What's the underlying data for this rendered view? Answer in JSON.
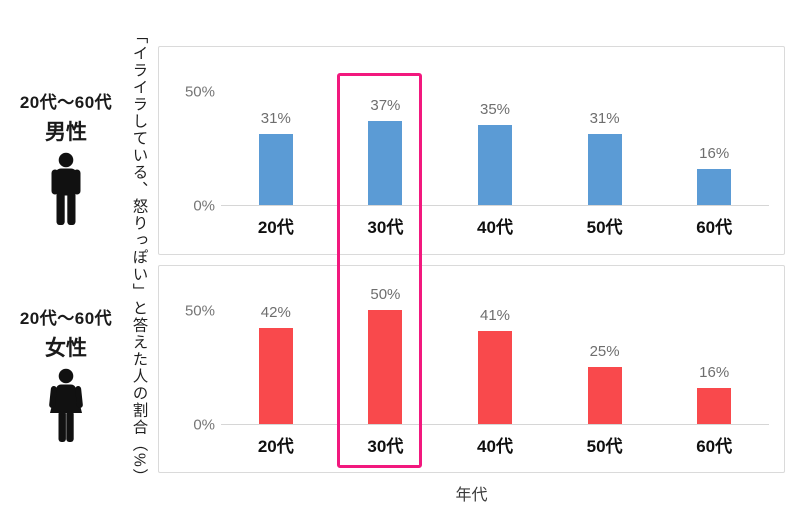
{
  "y_axis_title": "「イライラしている、怒りっぽい」と答えた人の割合（%）",
  "x_axis_title": "年代",
  "side_labels": {
    "male": {
      "age_range": "20代〜60代",
      "gender": "男性"
    },
    "female": {
      "age_range": "20代〜60代",
      "gender": "女性"
    }
  },
  "highlight": {
    "category": "30代",
    "color": "#f2187e"
  },
  "colors": {
    "male_bar": "#5b9bd5",
    "female_bar": "#f9494c",
    "panel_border": "#dadada",
    "axis_line": "#d6d6d6",
    "value_label": "#6e6e6e",
    "tick_label": "#757575"
  },
  "chart_data": [
    {
      "type": "bar",
      "name": "20代〜60代 男性",
      "categories": [
        "20代",
        "30代",
        "40代",
        "50代",
        "60代"
      ],
      "values": [
        31,
        37,
        35,
        31,
        16
      ],
      "value_labels": [
        "31%",
        "37%",
        "35%",
        "31%",
        "16%"
      ],
      "bar_color": "#5b9bd5",
      "ytick_labels": [
        "50%",
        "0%"
      ],
      "ylim": [
        0,
        50
      ],
      "grid": false,
      "legend": "none"
    },
    {
      "type": "bar",
      "name": "20代〜60代 女性",
      "categories": [
        "20代",
        "30代",
        "40代",
        "50代",
        "60代"
      ],
      "values": [
        42,
        50,
        41,
        25,
        16
      ],
      "value_labels": [
        "42%",
        "50%",
        "41%",
        "25%",
        "16%"
      ],
      "bar_color": "#f9494c",
      "ytick_labels": [
        "50%",
        "0%"
      ],
      "ylim": [
        0,
        50
      ],
      "grid": false,
      "legend": "none"
    }
  ]
}
